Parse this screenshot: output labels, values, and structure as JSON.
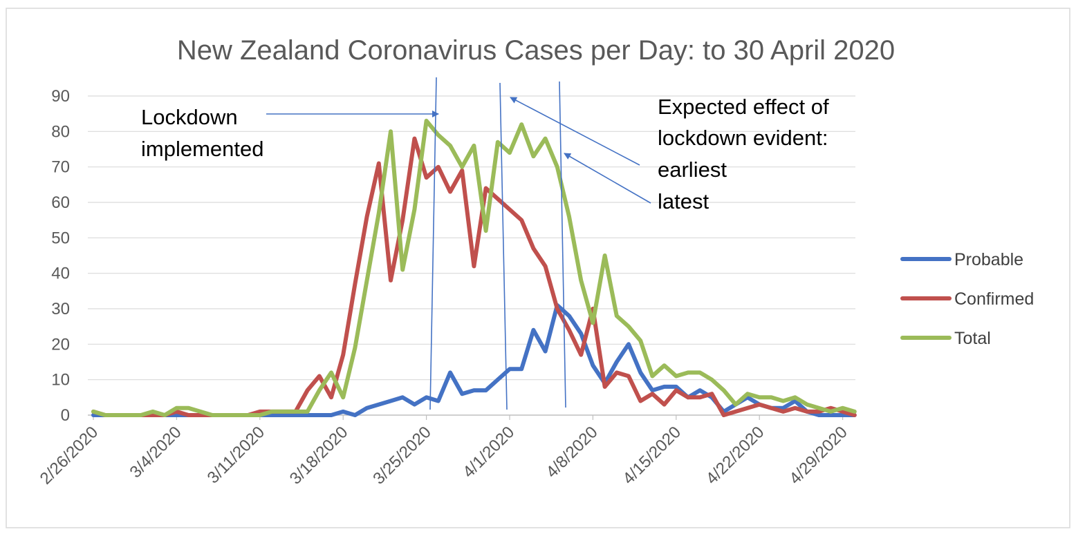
{
  "chart_data": {
    "type": "line",
    "title": "New Zealand Coronavirus Cases per Day: to 30 April 2020",
    "xlabel": "",
    "ylabel": "",
    "ylim": [
      0,
      90
    ],
    "y_ticks": [
      "0",
      "10",
      "20",
      "30",
      "40",
      "50",
      "60",
      "70",
      "80",
      "90"
    ],
    "x_tick_labels": [
      "2/26/2020",
      "3/4/2020",
      "3/11/2020",
      "3/18/2020",
      "3/25/2020",
      "4/1/2020",
      "4/8/2020",
      "4/15/2020",
      "4/22/2020",
      "4/29/2020"
    ],
    "x_start_date": "2/26/2020",
    "x_end_date": "4/30/2020",
    "grid": "horizontal",
    "legend_position": "right",
    "x": [
      "2/26/2020",
      "2/27/2020",
      "2/28/2020",
      "2/29/2020",
      "3/1/2020",
      "3/2/2020",
      "3/3/2020",
      "3/4/2020",
      "3/5/2020",
      "3/6/2020",
      "3/7/2020",
      "3/8/2020",
      "3/9/2020",
      "3/10/2020",
      "3/11/2020",
      "3/12/2020",
      "3/13/2020",
      "3/14/2020",
      "3/15/2020",
      "3/16/2020",
      "3/17/2020",
      "3/18/2020",
      "3/19/2020",
      "3/20/2020",
      "3/21/2020",
      "3/22/2020",
      "3/23/2020",
      "3/24/2020",
      "3/25/2020",
      "3/26/2020",
      "3/27/2020",
      "3/28/2020",
      "3/29/2020",
      "3/30/2020",
      "3/31/2020",
      "4/1/2020",
      "4/2/2020",
      "4/3/2020",
      "4/4/2020",
      "4/5/2020",
      "4/6/2020",
      "4/7/2020",
      "4/8/2020",
      "4/9/2020",
      "4/10/2020",
      "4/11/2020",
      "4/12/2020",
      "4/13/2020",
      "4/14/2020",
      "4/15/2020",
      "4/16/2020",
      "4/17/2020",
      "4/18/2020",
      "4/19/2020",
      "4/20/2020",
      "4/21/2020",
      "4/22/2020",
      "4/23/2020",
      "4/24/2020",
      "4/25/2020",
      "4/26/2020",
      "4/27/2020",
      "4/28/2020",
      "4/29/2020",
      "4/30/2020"
    ],
    "series": [
      {
        "name": "Probable",
        "color": "#4472C4",
        "values": [
          0,
          0,
          0,
          0,
          0,
          0,
          0,
          0,
          0,
          0,
          0,
          0,
          0,
          0,
          0,
          0,
          0,
          0,
          0,
          0,
          0,
          1,
          0,
          2,
          3,
          4,
          5,
          3,
          5,
          4,
          12,
          6,
          7,
          7,
          10,
          13,
          13,
          24,
          18,
          31,
          28,
          23,
          14,
          9,
          15,
          20,
          12,
          7,
          8,
          8,
          5,
          7,
          5,
          1,
          3,
          5,
          3,
          2,
          2,
          4,
          1,
          0,
          0,
          0,
          0
        ]
      },
      {
        "name": "Confirmed",
        "color": "#C0504D",
        "values": [
          1,
          0,
          0,
          0,
          0,
          0,
          0,
          1,
          0,
          0,
          0,
          0,
          0,
          0,
          1,
          1,
          1,
          1,
          7,
          11,
          5,
          17,
          37,
          56,
          71,
          38,
          55,
          78,
          67,
          70,
          63,
          69,
          42,
          64,
          61,
          58,
          55,
          47,
          42,
          30,
          24,
          17,
          30,
          8,
          12,
          11,
          4,
          6,
          3,
          7,
          5,
          5,
          6,
          0,
          1,
          2,
          3,
          2,
          1,
          2,
          1,
          1,
          2,
          1,
          0
        ]
      },
      {
        "name": "Total",
        "color": "#9BBB59",
        "values": [
          1,
          0,
          0,
          0,
          0,
          1,
          0,
          2,
          2,
          1,
          0,
          0,
          0,
          0,
          0,
          1,
          1,
          1,
          1,
          7,
          12,
          5,
          19,
          38,
          57,
          80,
          41,
          58,
          83,
          79,
          76,
          70,
          76,
          52,
          77,
          74,
          82,
          73,
          78,
          70,
          56,
          38,
          26,
          45,
          28,
          25,
          21,
          11,
          14,
          11,
          12,
          12,
          10,
          7,
          3,
          6,
          5,
          5,
          4,
          5,
          3,
          2,
          1,
          2,
          1
        ]
      }
    ],
    "annotations": {
      "lockdown_line1": "Lockdown",
      "lockdown_line2": "implemented",
      "effect_line1": "Expected effect of",
      "effect_line2": "lockdown evident:",
      "effect_earliest": "earliest",
      "effect_latest": "latest"
    }
  }
}
